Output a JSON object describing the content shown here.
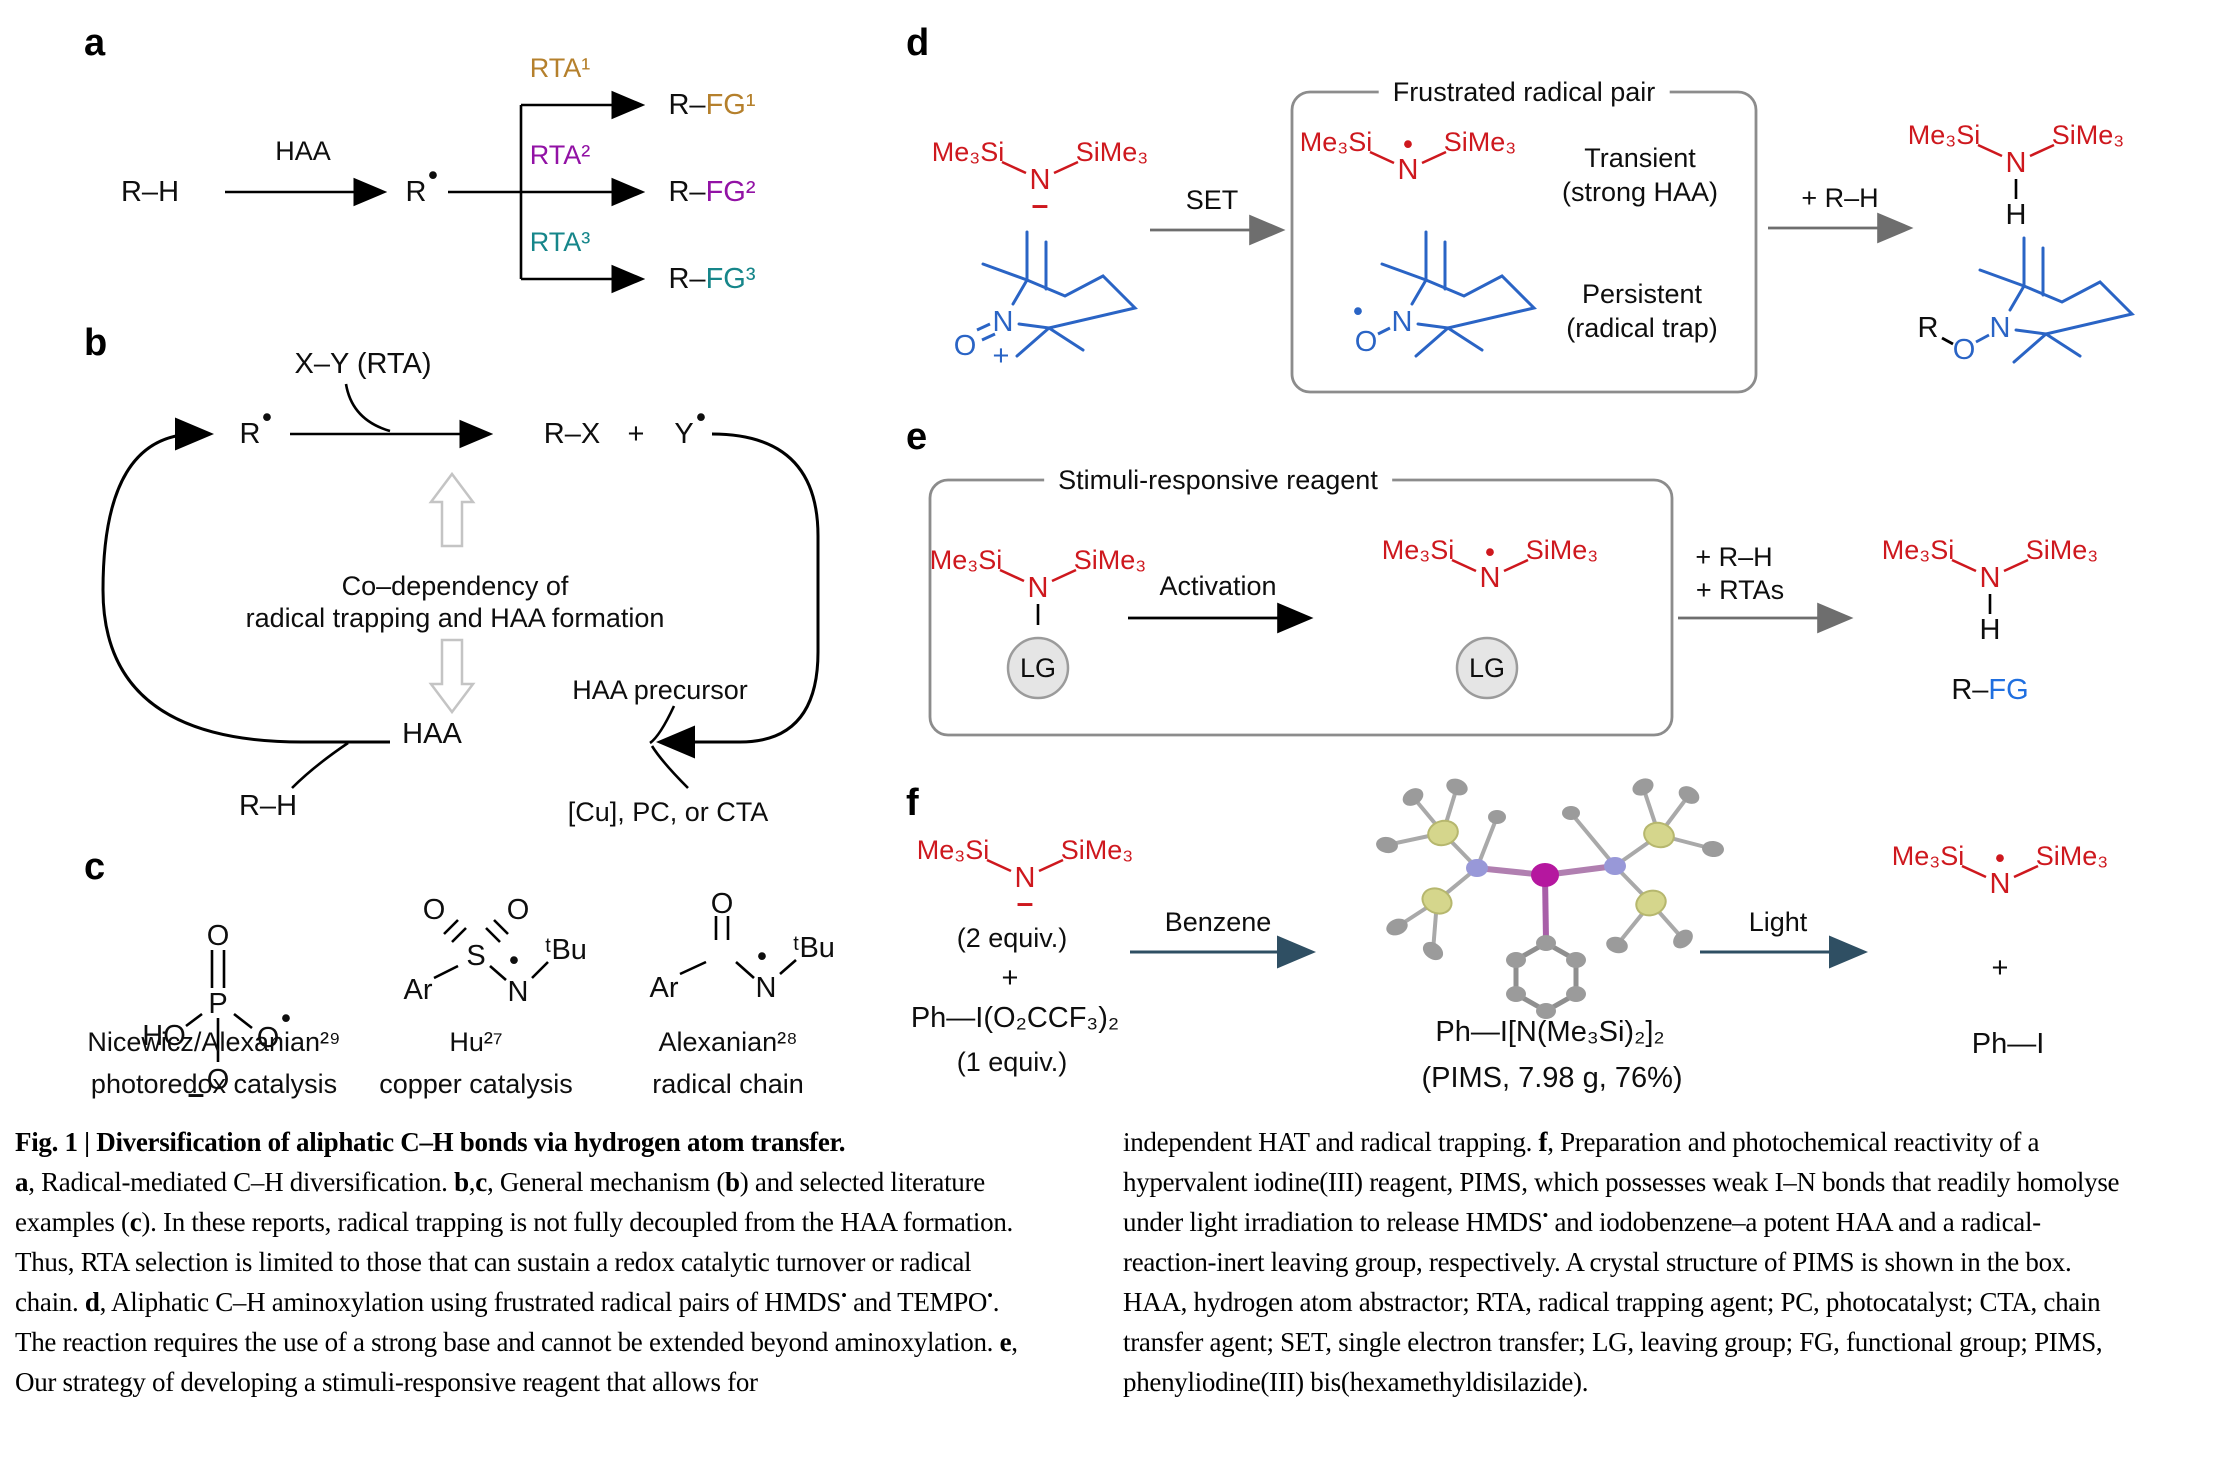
{
  "colors": {
    "red": "#ce181e",
    "blue": "#2a64c5",
    "fg_blue": "#1f6fe0",
    "tan": "#b5802c",
    "purple": "#9212a5",
    "teal": "#16868a",
    "arrow_gray": "#6e6e6e",
    "arrow_dark": "#2f4f63",
    "light_gray": "#c4c4c4"
  },
  "glyphs": {
    "dot": "•",
    "minus": "–",
    "plus": "+"
  },
  "atoms": {
    "o": "O",
    "ho": "HO",
    "p": "P",
    "ar": "Ar",
    "n": "N",
    "s": "S",
    "tbu": "ᵗBu",
    "r": "R",
    "h": "H",
    "y": "Y"
  },
  "hmds": {
    "me3si": "Me₃Si",
    "sime3": "SiMe₃",
    "n": "N",
    "h": "H"
  },
  "panel_a": {
    "label": "a",
    "substrate": "R–H",
    "haa": "HAA",
    "radical": "R",
    "branches": [
      {
        "rta": "RTA¹",
        "product": "R–",
        "fg": "FG¹"
      },
      {
        "rta": "RTA²",
        "product": "R–",
        "fg": "FG²"
      },
      {
        "rta": "RTA³",
        "product": "R–",
        "fg": "FG³"
      }
    ]
  },
  "panel_b": {
    "label": "b",
    "xy_rta": "X–Y (RTA)",
    "radical": "R",
    "rx": "R–X",
    "y_rad": "Y",
    "codep_line1": "Co–dependency of",
    "codep_line2": "radical trapping and HAA formation",
    "haa": "HAA",
    "haa_precursor": "HAA precursor",
    "cu_pc_cta": "[Cu], PC, or CTA",
    "rh": "R–H"
  },
  "panel_c": {
    "label": "c",
    "entries": [
      {
        "ref": "Nicewicz/Alexanian²⁹",
        "method": "photoredox catalysis"
      },
      {
        "ref": "Hu²⁷",
        "method": "copper catalysis"
      },
      {
        "ref": "Alexanian²⁸",
        "method": "radical chain"
      }
    ]
  },
  "panel_d": {
    "label": "d",
    "set": "SET",
    "box_title": "Frustrated radical pair",
    "transient1": "Transient",
    "transient2": "(strong HAA)",
    "persistent1": "Persistent",
    "persistent2": "(radical trap)",
    "plus_rh": "+ R–H"
  },
  "panel_e": {
    "label": "e",
    "box_title": "Stimuli-responsive reagent",
    "lg": "LG",
    "activation": "Activation",
    "plus_rh": "+ R–H",
    "plus_rtas": "+ RTAs",
    "product_r": "R–",
    "product_fg": "FG"
  },
  "panel_f": {
    "label": "f",
    "equiv2": "(2 equiv.)",
    "phi_tfa": "Ph—I(O₂CCF₃)₂",
    "equiv1": "(1 equiv.)",
    "benzene": "Benzene",
    "pims_formula": "Ph—I[N(Me₃Si)₂]₂",
    "pims_detail": "(PIMS, 7.98 g, 76%)",
    "light": "Light",
    "phi": "Ph—I"
  },
  "caption": {
    "title": "Fig. 1 | Diversification of aliphatic C–H bonds via hydrogen atom transfer.",
    "left_segments": [
      {
        "t": "a",
        "b": 1
      },
      {
        "t": ", Radical-mediated C–H diversification. "
      },
      {
        "t": "b",
        "b": 1
      },
      {
        "t": ","
      },
      {
        "t": "c",
        "b": 1
      },
      {
        "t": ", General mechanism ("
      },
      {
        "t": "b",
        "b": 1
      },
      {
        "t": ") and selected literature examples ("
      },
      {
        "t": "c",
        "b": 1
      },
      {
        "t": "). In these reports, radical trapping is not fully decoupled from the HAA formation. Thus, RTA selection is limited to those that can sustain a redox catalytic turnover or radical chain. "
      },
      {
        "t": "d",
        "b": 1
      },
      {
        "t": ", Aliphatic C–H aminoxylation using frustrated radical pairs of HMDS"
      },
      {
        "t": "•",
        "s": 1
      },
      {
        "t": " and TEMPO"
      },
      {
        "t": "•",
        "s": 1
      },
      {
        "t": ". The reaction requires the use of a strong base and cannot be extended beyond aminoxylation. "
      },
      {
        "t": "e",
        "b": 1
      },
      {
        "t": ", Our strategy of developing a stimuli-responsive reagent that allows for"
      }
    ],
    "right_segments": [
      {
        "t": "independent HAT and radical trapping. "
      },
      {
        "t": "f",
        "b": 1
      },
      {
        "t": ", Preparation and photochemical reactivity of a hypervalent iodine(III) reagent, PIMS, which possesses weak I–N bonds that readily homolyse under light irradiation to release HMDS"
      },
      {
        "t": "•",
        "s": 1
      },
      {
        "t": " and iodobenzene–a potent HAA and a radical-reaction-inert leaving group, respectively. A crystal structure of PIMS is shown in the box. HAA, hydrogen atom abstractor; RTA, radical trapping agent; PC, photocatalyst; CTA, chain transfer agent; SET, single electron transfer; LG, leaving group; FG, functional group; PIMS, phenyliodine(III) bis(hexamethyldisilazide)."
      }
    ]
  }
}
